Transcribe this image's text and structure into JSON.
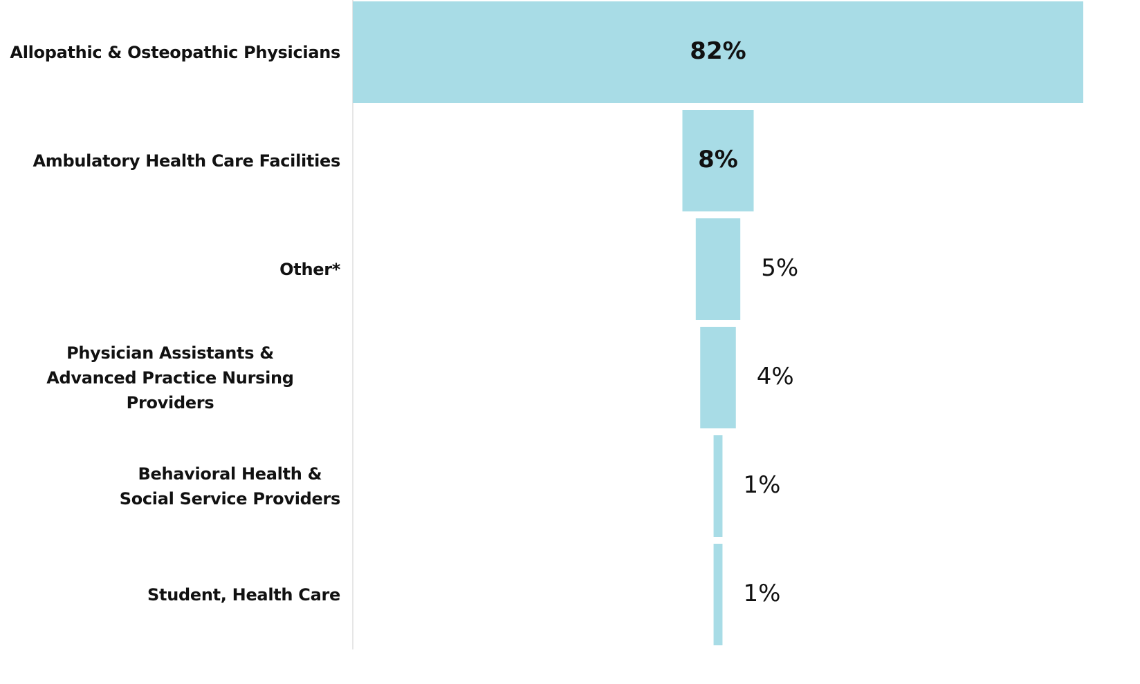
{
  "chart_data": {
    "type": "bar",
    "orientation": "horizontal",
    "categories": [
      "Allopathic & Osteopathic Physicians",
      "Ambulatory Health Care Facilities",
      "Other*",
      "Physician Assistants &\nAdvanced Practice Nursing Providers",
      "Behavioral Health &\nSocial Service Providers",
      "Student, Health Care"
    ],
    "values": [
      82,
      8,
      5,
      4,
      1,
      1
    ],
    "value_labels": [
      "82%",
      "8%",
      "5%",
      "4%",
      "1%",
      "1%"
    ],
    "color": "#a8dce6"
  }
}
